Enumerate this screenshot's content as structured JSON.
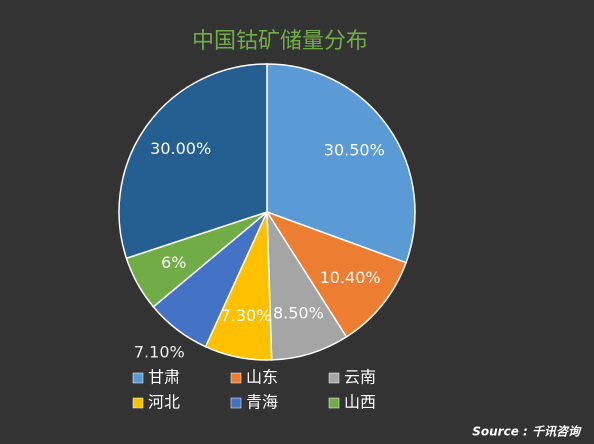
{
  "chart_data": {
    "type": "pie",
    "title": "中国钴矿储量分布",
    "categories": [
      "甘肃",
      "山东",
      "云南",
      "河北",
      "青海",
      "山西",
      null
    ],
    "values": [
      30.5,
      10.4,
      8.5,
      7.3,
      7.1,
      6,
      30.0
    ],
    "value_labels": [
      "30.50%",
      "10.40%",
      "8.50%",
      "7.30%",
      "7.10%",
      "6%",
      "30.00%"
    ],
    "colors": [
      "#5b9bd5",
      "#ed7d31",
      "#a5a5a5",
      "#ffc000",
      "#4472c4",
      "#70ad47",
      "#255e91"
    ],
    "source": "Source : 千讯咨询"
  }
}
